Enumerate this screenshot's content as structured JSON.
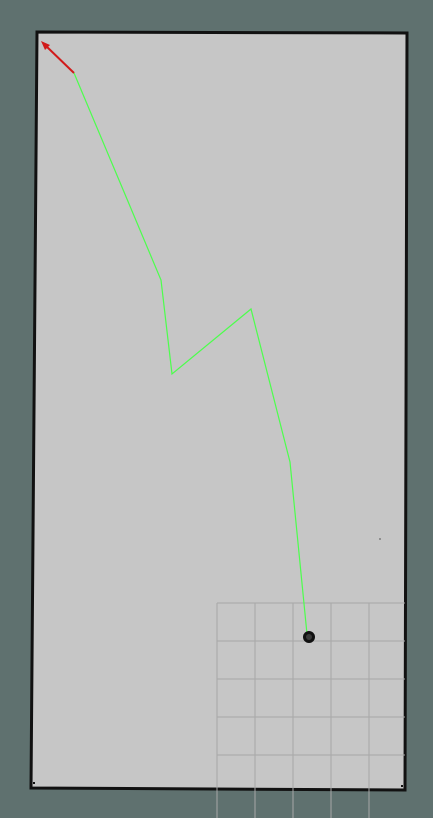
{
  "app": {
    "type": "map-viewer"
  },
  "colors": {
    "background": "#5f716f",
    "map_free": "#c6c6c6",
    "map_wall": "#111111",
    "grid": "#a7a7a7",
    "path": "#4cff4c",
    "goal_arrow": "#d11a1a",
    "robot": "#111111"
  },
  "map": {
    "robot_marker": "robot-icon",
    "goal_marker": "goal-arrow-icon",
    "path_style": "polyline",
    "grid_visible": true
  }
}
